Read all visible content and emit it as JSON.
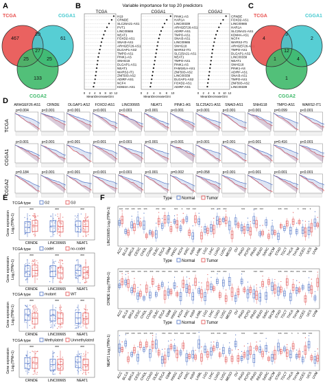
{
  "panels": {
    "A": {
      "letter": "A",
      "sets": [
        {
          "name": "TCGA",
          "color": "#e8514f"
        },
        {
          "name": "CGGA1",
          "color": "#45c9cf"
        },
        {
          "name": "CGGA2",
          "color": "#3fb96a"
        }
      ],
      "regions": {
        "only1": "467",
        "only2": "61",
        "only3": "133",
        "ab": "20",
        "ac": "25",
        "bc": "25",
        "abc": "27"
      }
    },
    "B": {
      "letter": "B",
      "title": "Variable importance for top 20 predictors",
      "xlabel": "MeanDecreaseGini",
      "subplots": [
        {
          "name": "TCGA",
          "genes": [
            "H19",
            "CRNDE",
            "SLC25A21-AS1",
            "PVT1",
            "LINC00665",
            "NEAT1",
            "FOXD2-AS1",
            "SNAI3-AS1",
            "ARHGEF26-AS1",
            "DLGAP1-AS2",
            "TMPO-AS1",
            "PINK1-AS",
            "SNHG18",
            "DLGAP1-AS1",
            "NEAT1",
            "WARS2-IT1",
            "ZNF503-AS2",
            "ADIRF-AS1",
            "NCF4",
            "KDM4A-AS1"
          ],
          "values": [
            11.2,
            10.4,
            9.4,
            8.6,
            7.9,
            7.4,
            6.9,
            6.5,
            6.2,
            5.9,
            5.6,
            5.3,
            5.1,
            4.9,
            4.7,
            4.5,
            4.3,
            4.1,
            3.8,
            3.5
          ],
          "ticks": [
            "0",
            "2",
            "4",
            "6",
            "8",
            "10",
            "12"
          ],
          "xmax": 12
        },
        {
          "name": "CGGA1",
          "genes": [
            "PINK1-AS",
            "HAR1A",
            "LINC00339",
            "ARHGEF26-AS1",
            "ADIRF-AS1",
            "TMPO-AS1",
            "SNAI3-AS1",
            "LINC00665",
            "SNHG18",
            "WARS2-IT1",
            "SLC25A21-AS1",
            "NEAT1",
            "TMPO-AS1",
            "PINK1-AS",
            "FAM181A-AS1",
            "ZNF503-AS2",
            "LINC00339",
            "DLGAP1-AS2",
            "FOXD2-AS1",
            "ADIRF-AS1"
          ],
          "values": [
            9.3,
            8.1,
            7.4,
            6.8,
            6.3,
            5.9,
            5.6,
            5.3,
            5.1,
            4.9,
            4.7,
            4.5,
            4.3,
            4.1,
            3.9,
            3.7,
            3.5,
            3.3,
            3.1,
            2.9
          ],
          "ticks": [
            "0",
            "2",
            "4",
            "6",
            "8",
            "10"
          ],
          "xmax": 10
        },
        {
          "name": "CGGA2",
          "genes": [
            "CRNDE",
            "FOXD2-AS1",
            "LINC00665",
            "HAR1A",
            "SLC25A21-AS1",
            "KDM4A-AS1",
            "NCF4",
            "WARS2-IT1",
            "ARHGEF26-AS1",
            "TMPO-AS1",
            "DLGAP1-AS2",
            "LINC00339",
            "NEAT1",
            "SNHG18",
            "PINK1-AS",
            "ADIRF-AS1",
            "SNAI3-AS1",
            "TMPO-AS1",
            "ZNF503-AS2",
            "LINC00339"
          ],
          "values": [
            10.6,
            9.5,
            8.6,
            7.9,
            7.3,
            6.8,
            6.4,
            6.1,
            5.8,
            5.5,
            5.3,
            5.1,
            4.9,
            4.7,
            4.5,
            4.3,
            4.1,
            3.9,
            3.7,
            3.5
          ],
          "ticks": [
            "0",
            "2",
            "4",
            "6",
            "8",
            "10",
            "12"
          ],
          "xmax": 12
        }
      ]
    },
    "C": {
      "letter": "C",
      "sets": [
        {
          "name": "TCGA",
          "color": "#e8514f"
        },
        {
          "name": "CGGA1",
          "color": "#45c9cf"
        },
        {
          "name": "CGGA2",
          "color": "#3fb96a"
        }
      ],
      "regions": {
        "only1": "4",
        "only2": "2",
        "only3": "1",
        "ab": "3",
        "ac": "1",
        "bc": "4",
        "abc": "12"
      }
    },
    "D": {
      "letter": "D",
      "genes": [
        "ARHGEF26-AS1",
        "CRNDE",
        "DLGAP1-AS2",
        "FOXD2-AS1",
        "LINC00665",
        "NEAT1",
        "PINK1-AS",
        "SLC25A21-AS1",
        "SNAI3-AS1",
        "SNHG18",
        "TMPO-AS1",
        "WARS2-IT1"
      ],
      "rows": [
        {
          "name": "TCGA",
          "pvals": [
            "p=0.004",
            "p<0.001",
            "p<0.001",
            "p<0.001",
            "p<0.001",
            "p<0.001",
            "p<0.001",
            "p<0.001",
            "p<0.001",
            "p<0.001",
            "p=0.099",
            "p<0.001"
          ]
        },
        {
          "name": "CGGA1",
          "pvals": [
            "p<0.001",
            "p<0.001",
            "p<0.001",
            "p<0.001",
            "p<0.001",
            "p<0.001",
            "p<0.001",
            "p<0.001",
            "p<0.001",
            "p<0.001",
            "p=0.416",
            "p<0.001"
          ]
        },
        {
          "name": "CGGA2",
          "pvals": [
            "p=0.184",
            "p<0.001",
            "p<0.001",
            "p<0.001",
            "p<0.001",
            "p<0.001",
            "p=0.002",
            "p=0.058",
            "p<0.001",
            "p<0.001",
            "p<0.001",
            "p<0.001"
          ]
        }
      ]
    },
    "E": {
      "letter": "E",
      "ylabel": "Gene expression\nLog₂(TPM+1)",
      "genes": [
        "CRNDE",
        "LINC00665",
        "NEAT1"
      ],
      "subplots": [
        {
          "legend_title": "TCGA type",
          "groups": [
            "G2",
            "G3"
          ],
          "sig": [
            "***",
            "***",
            "***"
          ]
        },
        {
          "legend_title": "TCGA type",
          "groups": [
            "codel",
            "no-codel"
          ],
          "sig": [
            "***",
            "***",
            "***"
          ]
        },
        {
          "legend_title": "TCGA type",
          "groups": [
            "mutant",
            "WT"
          ],
          "sig": [
            "***",
            "***",
            "***"
          ]
        },
        {
          "legend_title": "TCGA type",
          "groups": [
            "Methylated",
            "Unmethylated"
          ],
          "sig": [
            "***",
            "***",
            "***"
          ]
        }
      ],
      "colors": {
        "group1": "#4a6fc4",
        "group2": "#e04b4b"
      }
    },
    "F": {
      "letter": "F",
      "legend_title": "Type",
      "groups": [
        "Normal",
        "Tumor"
      ],
      "cancers": [
        "ACC",
        "BLCA",
        "BRCA",
        "CESC",
        "CHOL",
        "COAD",
        "DLBC",
        "ESCA",
        "GBM",
        "HNSC",
        "KICH",
        "KIRC",
        "KIRP",
        "LAML",
        "LGG",
        "LIHC",
        "LUAD",
        "LUSC",
        "MESO",
        "OV",
        "PAAD",
        "PCPG",
        "PRAD",
        "READ",
        "SARC",
        "SKCM",
        "STAD",
        "TGCT",
        "THCA",
        "THYM",
        "UCEC",
        "UCS",
        "UVM"
      ],
      "subplots": [
        {
          "ylabel": "LINC00665 Log₂(TPM+1)",
          "sig": [
            "***",
            "***",
            "***",
            "***",
            "***",
            "",
            "***",
            "***",
            "",
            "***",
            "*",
            "***",
            "***",
            "",
            "",
            "***",
            "***",
            "***",
            "",
            "",
            "***",
            "",
            "***",
            "***",
            "",
            "",
            "***",
            "***",
            "",
            "*",
            "***",
            "*",
            ""
          ]
        },
        {
          "ylabel": "CRNDE Log₂(TPM+1)",
          "sig": [
            "***",
            "***",
            "***",
            "***",
            "***",
            "***",
            "***",
            "***",
            "***",
            "***",
            "**",
            "***",
            "***",
            "",
            "",
            "***",
            "***",
            "***",
            "",
            "",
            "***",
            "",
            "***",
            "***",
            "",
            "",
            "***",
            "***",
            "***",
            "***",
            "***",
            "***",
            ""
          ]
        },
        {
          "ylabel": "NEAT1 Log₂(TPM+1)",
          "sig": [
            "",
            "***",
            "***",
            "***",
            "***",
            "***",
            "",
            "***",
            "***",
            "***",
            "***",
            "***",
            "***",
            "",
            "",
            "***",
            "***",
            "***",
            "",
            "",
            "***",
            "",
            "***",
            "***",
            "",
            "",
            "***",
            "***",
            "*",
            "*",
            "***",
            "***",
            ""
          ]
        }
      ],
      "colors": {
        "group1": "#4a6fc4",
        "group2": "#e04b4b"
      }
    }
  }
}
